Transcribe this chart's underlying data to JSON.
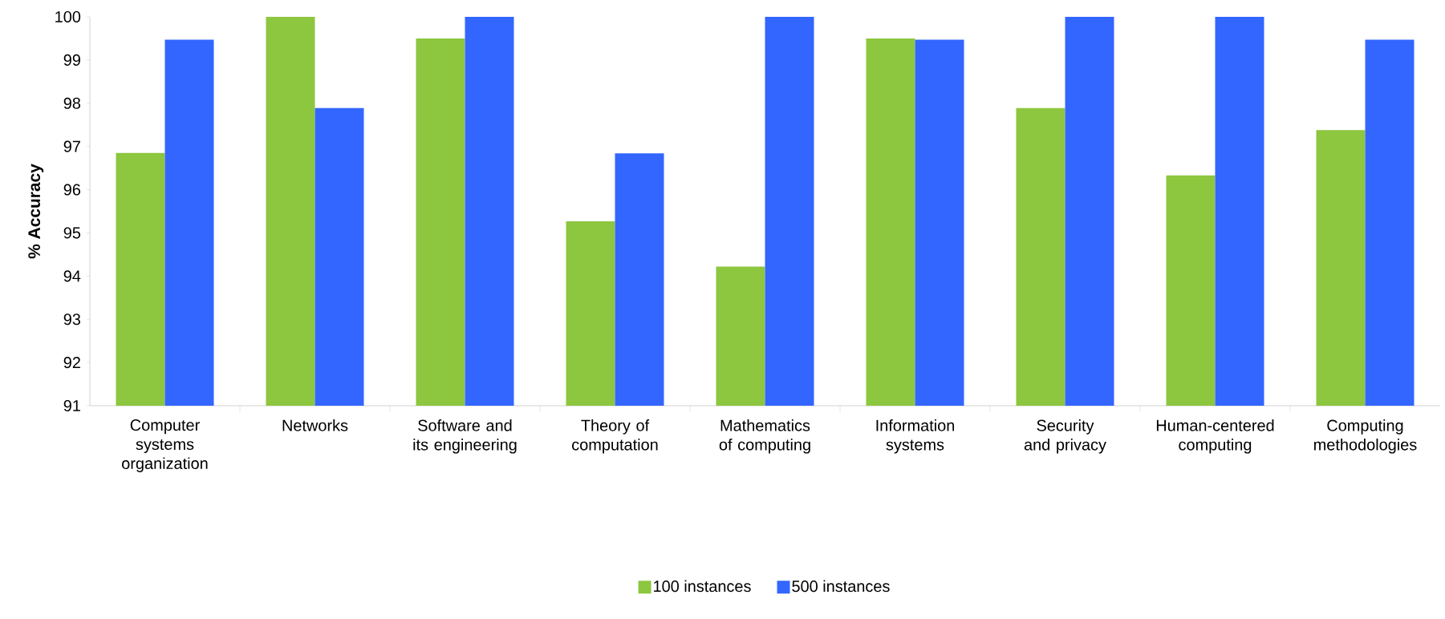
{
  "chart_data": {
    "type": "bar",
    "ylabel": "% Accuracy",
    "categories": [
      "Computer systems organization",
      "Networks",
      "Software and its engineering",
      "Theory of computation",
      "Mathematics of computing",
      "Information systems",
      "Security and privacy",
      "Human-centered computing",
      "Computing methodologies"
    ],
    "series": [
      {
        "name": "100 instances",
        "color": "#8dc63f",
        "values": [
          96.85,
          100,
          99.5,
          95.27,
          94.22,
          99.5,
          97.89,
          96.33,
          97.38
        ]
      },
      {
        "name": "500 instances",
        "color": "#3366ff",
        "values": [
          99.47,
          97.89,
          100,
          96.84,
          100,
          99.47,
          100,
          100,
          99.47
        ]
      }
    ],
    "ylim": [
      91,
      100
    ],
    "yticks": [
      91,
      92,
      93,
      94,
      95,
      96,
      97,
      98,
      99,
      100
    ],
    "grid": false,
    "legend": "bottom"
  }
}
